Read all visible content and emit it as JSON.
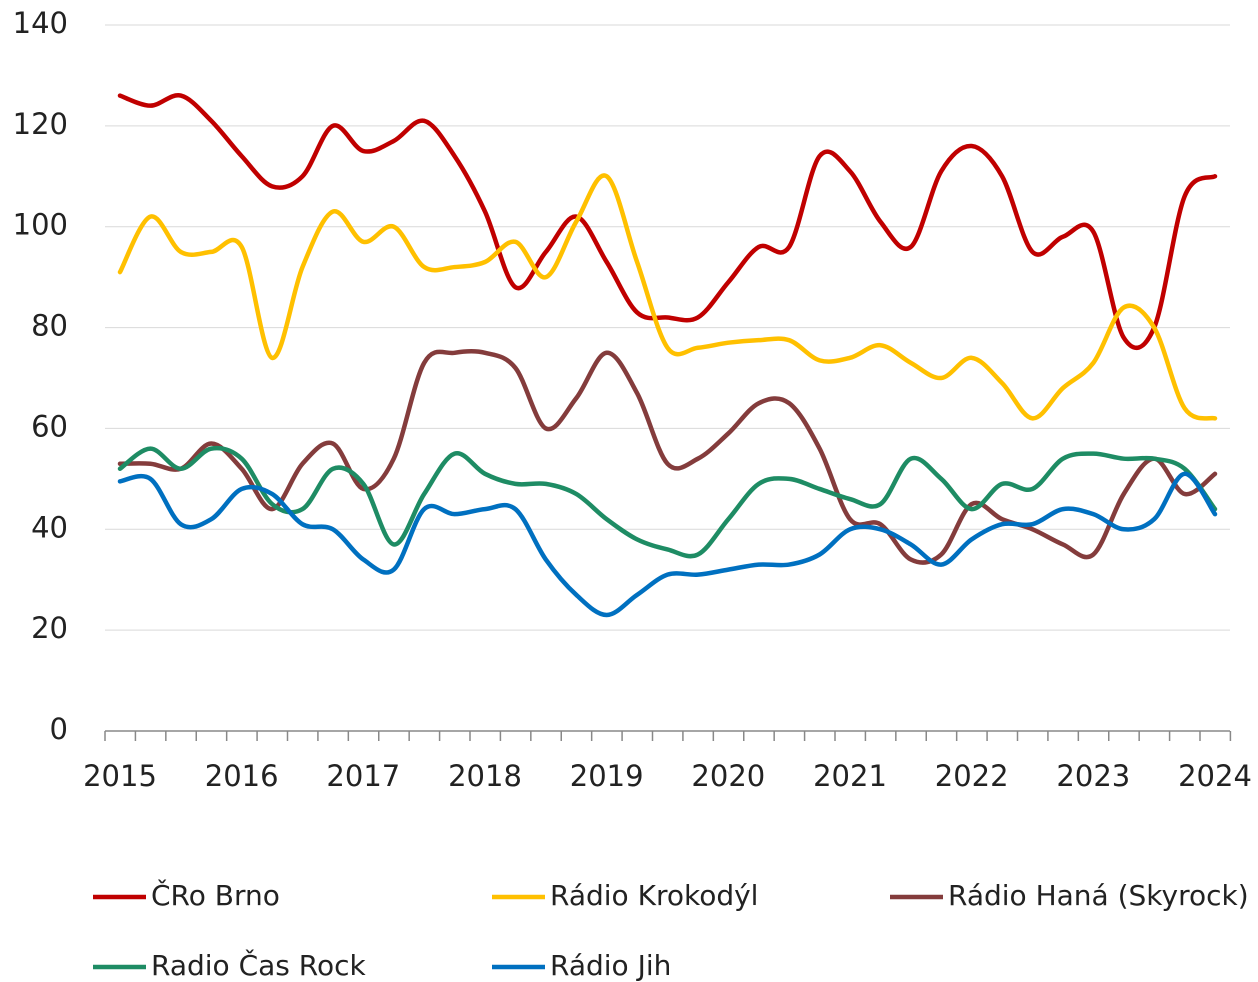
{
  "chart_data": {
    "type": "line",
    "categories": [
      "2015",
      null,
      null,
      null,
      "2016",
      null,
      null,
      null,
      "2017",
      null,
      null,
      null,
      "2018",
      null,
      null,
      null,
      "2019",
      null,
      null,
      null,
      "2020",
      null,
      null,
      null,
      "2021",
      null,
      null,
      null,
      "2022",
      null,
      null,
      null,
      "2023",
      null,
      null,
      null,
      "2024"
    ],
    "series": [
      {
        "name": "ČRo Brno",
        "color": "#c00000",
        "values": [
          126,
          124,
          126,
          121,
          114,
          108,
          110,
          120,
          115,
          117,
          121,
          114,
          103,
          88,
          95,
          102,
          93,
          83,
          82,
          82,
          89,
          96,
          96,
          114,
          111,
          101,
          96,
          111,
          116,
          110,
          95,
          98,
          99,
          78,
          80,
          106,
          110
        ]
      },
      {
        "name": "Rádio Krokodýl",
        "color": "#ffc000",
        "values": [
          91,
          102,
          95,
          95,
          96,
          74,
          92,
          103,
          97,
          100,
          92,
          92,
          93,
          97,
          90,
          101,
          110,
          93,
          76,
          76,
          77,
          77.5,
          77.5,
          73.5,
          74,
          76.5,
          73,
          70,
          74,
          69,
          62,
          68,
          73,
          84,
          80,
          64,
          62
        ]
      },
      {
        "name": "Rádio Haná (Skyrock)",
        "color": "#843c3c",
        "values": [
          53,
          53,
          52,
          57,
          52,
          44,
          53,
          57,
          48,
          54,
          73,
          75,
          75,
          72,
          60,
          66,
          75,
          67,
          53,
          54,
          59,
          65,
          65,
          56,
          42,
          41,
          34,
          35,
          45,
          42,
          40,
          37,
          35,
          47,
          54,
          47,
          51
        ]
      },
      {
        "name": "Radio Čas Rock",
        "color": "#1e8c64",
        "values": [
          52,
          56,
          52,
          56,
          54,
          45,
          44,
          52,
          49,
          37,
          47,
          55,
          51,
          49,
          49,
          47,
          42,
          38,
          36,
          35,
          42,
          49,
          50,
          48,
          46,
          45,
          54,
          50,
          44,
          49,
          48,
          54,
          55,
          54,
          54,
          52,
          44
        ]
      },
      {
        "name": "Rádio Jih",
        "color": "#0070c0",
        "values": [
          49.5,
          50,
          41,
          42,
          48,
          47,
          41,
          40,
          34,
          32,
          44,
          43,
          44,
          44,
          34,
          27,
          23,
          27,
          31,
          31,
          32,
          33,
          33,
          35,
          40,
          40,
          37,
          33,
          38,
          41,
          41,
          44,
          43,
          40,
          42,
          51,
          43
        ]
      }
    ],
    "ylim": [
      0,
      140
    ],
    "yticks": [
      0,
      20,
      40,
      60,
      80,
      100,
      120,
      140
    ],
    "grid": true,
    "legend": "bottom"
  }
}
